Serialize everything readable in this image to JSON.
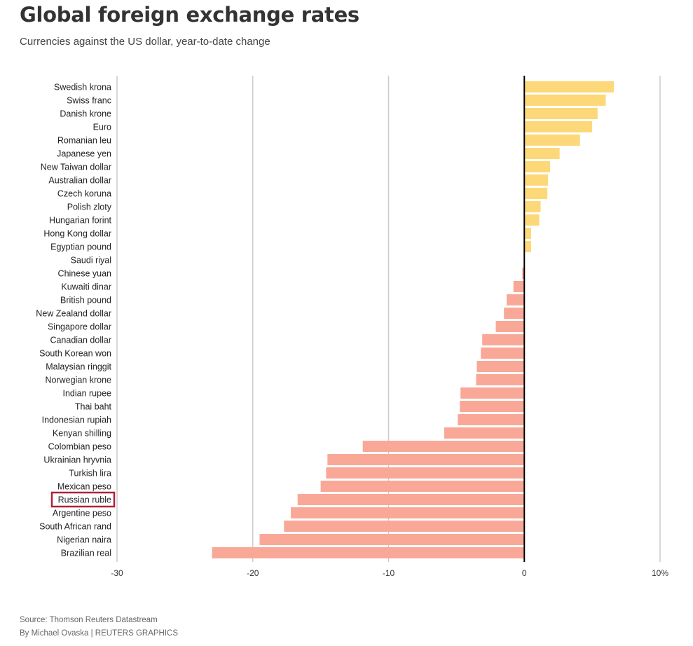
{
  "title": "Global foreign exchange rates",
  "subtitle": "Currencies against the US dollar, year-to-date change",
  "source": "Source: Thomson Reuters Datastream",
  "credit": "By Michael Ovaska | REUTERS GRAPHICS",
  "colors": {
    "positive": "#fdd878",
    "negative": "#f9a898",
    "zero_line": "#000000",
    "grid": "#cccccc",
    "highlight": "#b0213a"
  },
  "highlighted_category": "Russian ruble",
  "chart_data": {
    "type": "bar",
    "orientation": "horizontal",
    "title": "Global foreign exchange rates",
    "subtitle": "Currencies against the US dollar, year-to-date change",
    "xlim": [
      -30,
      10
    ],
    "xticks": [
      -30,
      -20,
      -10,
      0,
      10
    ],
    "xtick_labels": [
      "-30",
      "-20",
      "-10",
      "0",
      "10%"
    ],
    "grid": true,
    "categories": [
      "Swedish krona",
      "Swiss franc",
      "Danish krone",
      "Euro",
      "Romanian leu",
      "Japanese yen",
      "New Taiwan dollar",
      "Australian dollar",
      "Czech koruna",
      "Polish zloty",
      "Hungarian forint",
      "Hong Kong dollar",
      "Egyptian pound",
      "Saudi riyal",
      "Chinese yuan",
      "Kuwaiti dinar",
      "British pound",
      "New Zealand dollar",
      "Singapore dollar",
      "Canadian dollar",
      "South Korean won",
      "Malaysian ringgit",
      "Norwegian krone",
      "Indian rupee",
      "Thai baht",
      "Indonesian rupiah",
      "Kenyan shilling",
      "Colombian peso",
      "Ukrainian hryvnia",
      "Turkish lira",
      "Mexican peso",
      "Russian ruble",
      "Argentine peso",
      "South African rand",
      "Nigerian naira",
      "Brazilian real"
    ],
    "values": [
      6.6,
      6.0,
      5.4,
      5.0,
      4.1,
      2.6,
      1.9,
      1.75,
      1.7,
      1.2,
      1.1,
      0.5,
      0.5,
      0.0,
      -0.15,
      -0.8,
      -1.3,
      -1.5,
      -2.1,
      -3.1,
      -3.2,
      -3.5,
      -3.55,
      -4.7,
      -4.75,
      -4.9,
      -5.9,
      -11.9,
      -14.5,
      -14.6,
      -15.0,
      -16.7,
      -17.2,
      -17.7,
      -19.5,
      -23.0
    ]
  }
}
